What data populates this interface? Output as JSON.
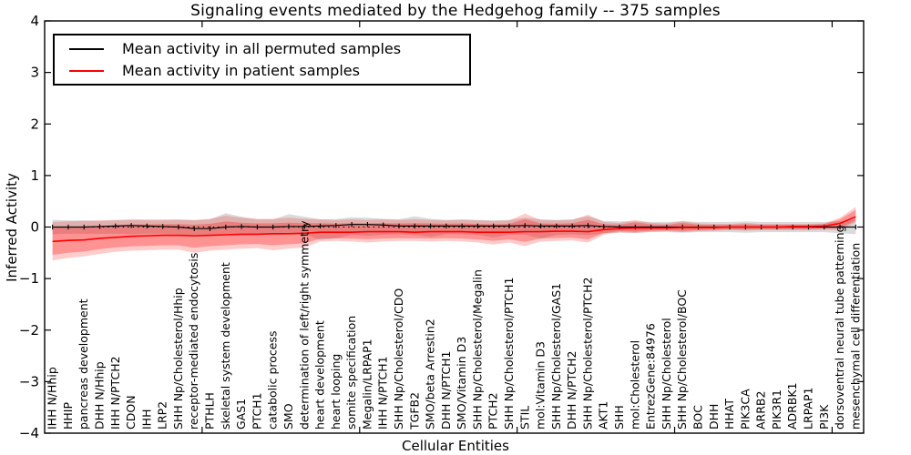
{
  "figure": {
    "title": "Signaling events mediated by the Hedgehog family -- 375 samples",
    "xlabel": "Cellular Entities",
    "ylabel": "Inferred Activity",
    "background_color": "#ffffff",
    "frame_color": "#000000"
  },
  "legend": {
    "position": "upper left",
    "entries": [
      {
        "label": "Mean activity in all permuted samples",
        "color": "#000000"
      },
      {
        "label": "Mean activity in patient samples",
        "color": "#ff0000"
      }
    ]
  },
  "chart_data": {
    "type": "line",
    "title": "Signaling events mediated by the Hedgehog family -- 375 samples",
    "xlabel": "Cellular Entities",
    "ylabel": "Inferred Activity",
    "ylim": [
      -4,
      4
    ],
    "yticks": [
      -4,
      -3,
      -2,
      -1,
      0,
      1,
      2,
      3,
      4
    ],
    "xticks": [
      10,
      20,
      30,
      40,
      50
    ],
    "grid": false,
    "legend_position": "upper left",
    "zero_line_style": "dotted",
    "categories": [
      "IHH N/Hhip",
      "HHIP",
      "pancreas development",
      "DHH N/Hhip",
      "IHH N/PTCH2",
      "CDON",
      "IHH",
      "LRP2",
      "SHH Np/Cholesterol/Hhip",
      "receptor-mediated endocytosis",
      "PTHLH",
      "skeletal system development",
      "GAS1",
      "PTCH1",
      "catabolic process",
      "SMO",
      "determination of left/right symmetry",
      "heart development",
      "heart looping",
      "somite specification",
      "Megalin/LRPAP1",
      "IHH N/PTCH1",
      "SHH Np/Cholesterol/CDO",
      "TGFB2",
      "SMO/beta Arrestin2",
      "DHH N/PTCH1",
      "SMO/Vitamin D3",
      "SHH Np/Cholesterol/Megalin",
      "PTCH2",
      "SHH Np/Cholesterol/PTCH1",
      "STIL",
      "mol:Vitamin D3",
      "SHH Np/Cholesterol/GAS1",
      "DHH N/PTCH2",
      "SHH Np/Cholesterol/PTCH2",
      "AKT1",
      "SHH",
      "mol:Cholesterol",
      "EntrezGene:84976",
      "SHH Np/Cholesterol",
      "SHH Np/Cholesterol/BOC",
      "BOC",
      "DHH",
      "HHAT",
      "PIK3CA",
      "ARRB2",
      "PIK3R1",
      "ADRBK1",
      "LRPAP1",
      "PI3K",
      "dorsoventral neural tube patterning",
      "mesenchymal cell differentiation"
    ],
    "series": [
      {
        "name": "Mean activity in all permuted samples",
        "color": "#000000",
        "line_width": 1.2,
        "marker": "|",
        "values": [
          0,
          0,
          0,
          0.01,
          0.02,
          0.03,
          0.02,
          0.01,
          0,
          -0.03,
          -0.03,
          0,
          0.01,
          0,
          0,
          0.01,
          0.01,
          0.02,
          0.03,
          0.05,
          0.05,
          0.04,
          0.02,
          0.02,
          0.02,
          0.02,
          0.02,
          0.02,
          0.02,
          0.02,
          0.03,
          0.02,
          0.02,
          0.02,
          0.03,
          0.01,
          0,
          0,
          0,
          0,
          0,
          0,
          0,
          0,
          0,
          0,
          0,
          0,
          0,
          0,
          0,
          0
        ],
        "band": {
          "upper": [
            0.14,
            0.13,
            0.13,
            0.12,
            0.13,
            0.14,
            0.13,
            0.13,
            0.14,
            0.13,
            0.15,
            0.27,
            0.2,
            0.15,
            0.15,
            0.25,
            0.2,
            0.15,
            0.15,
            0.19,
            0.18,
            0.16,
            0.15,
            0.21,
            0.16,
            0.14,
            0.15,
            0.14,
            0.13,
            0.14,
            0.18,
            0.15,
            0.14,
            0.15,
            0.21,
            0.12,
            0.11,
            0.11,
            0.1,
            0.1,
            0.11,
            0.1,
            0.1,
            0.1,
            0.11,
            0.1,
            0.1,
            0.1,
            0.1,
            0.1,
            0.11,
            0.14
          ],
          "lower": [
            -0.14,
            -0.13,
            -0.13,
            -0.13,
            -0.13,
            -0.14,
            -0.13,
            -0.13,
            -0.14,
            -0.18,
            -0.15,
            -0.14,
            -0.14,
            -0.13,
            -0.16,
            -0.14,
            -0.14,
            -0.25,
            -0.22,
            -0.15,
            -0.17,
            -0.15,
            -0.14,
            -0.15,
            -0.19,
            -0.14,
            -0.14,
            -0.15,
            -0.2,
            -0.15,
            -0.15,
            -0.22,
            -0.15,
            -0.14,
            -0.16,
            -0.12,
            -0.11,
            -0.11,
            -0.1,
            -0.1,
            -0.11,
            -0.1,
            -0.1,
            -0.1,
            -0.11,
            -0.1,
            -0.1,
            -0.1,
            -0.1,
            -0.1,
            -0.12,
            -0.14
          ],
          "color": "#000000",
          "opacity": 0.14,
          "inner_scale": 1,
          "inner_opacity": 0
        }
      },
      {
        "name": "Mean activity in patient samples",
        "color": "#ff0000",
        "line_width": 1.6,
        "marker": "none",
        "values": [
          -0.28,
          -0.26,
          -0.25,
          -0.22,
          -0.2,
          -0.18,
          -0.17,
          -0.16,
          -0.16,
          -0.17,
          -0.16,
          -0.15,
          -0.14,
          -0.14,
          -0.13,
          -0.13,
          -0.12,
          -0.1,
          -0.1,
          -0.1,
          -0.09,
          -0.09,
          -0.09,
          -0.1,
          -0.09,
          -0.09,
          -0.09,
          -0.1,
          -0.1,
          -0.1,
          -0.09,
          -0.09,
          -0.08,
          -0.08,
          -0.09,
          -0.05,
          -0.03,
          -0.02,
          -0.02,
          -0.02,
          -0.01,
          -0.01,
          -0.01,
          0,
          0,
          0,
          0,
          0.01,
          0.01,
          0.02,
          0.07,
          0.2
        ],
        "band": {
          "upper": [
            0.1,
            0.11,
            0.12,
            0.13,
            0.14,
            0.15,
            0.15,
            0.15,
            0.15,
            0.14,
            0.16,
            0.22,
            0.18,
            0.16,
            0.16,
            0.18,
            0.16,
            0.15,
            0.14,
            0.15,
            0.14,
            0.15,
            0.14,
            0.15,
            0.14,
            0.13,
            0.14,
            0.13,
            0.12,
            0.13,
            0.26,
            0.14,
            0.13,
            0.14,
            0.24,
            0.1,
            0.08,
            0.14,
            0.08,
            0.07,
            0.12,
            0.07,
            0.06,
            0.06,
            0.08,
            0.06,
            0.06,
            0.06,
            0.06,
            0.07,
            0.18,
            0.39
          ],
          "lower": [
            -0.65,
            -0.6,
            -0.57,
            -0.52,
            -0.48,
            -0.46,
            -0.45,
            -0.44,
            -0.44,
            -0.5,
            -0.46,
            -0.44,
            -0.42,
            -0.41,
            -0.45,
            -0.42,
            -0.4,
            -0.28,
            -0.27,
            -0.28,
            -0.3,
            -0.28,
            -0.27,
            -0.27,
            -0.28,
            -0.27,
            -0.28,
            -0.3,
            -0.34,
            -0.3,
            -0.37,
            -0.28,
            -0.27,
            -0.26,
            -0.3,
            -0.15,
            -0.1,
            -0.12,
            -0.09,
            -0.08,
            -0.1,
            -0.08,
            -0.07,
            -0.06,
            -0.07,
            -0.06,
            -0.06,
            -0.06,
            -0.06,
            -0.05,
            -0.06,
            0.09
          ],
          "color": "#ff0000",
          "opacity": 0.2,
          "inner_scale": 0.7,
          "inner_opacity": 0.28
        }
      }
    ]
  }
}
